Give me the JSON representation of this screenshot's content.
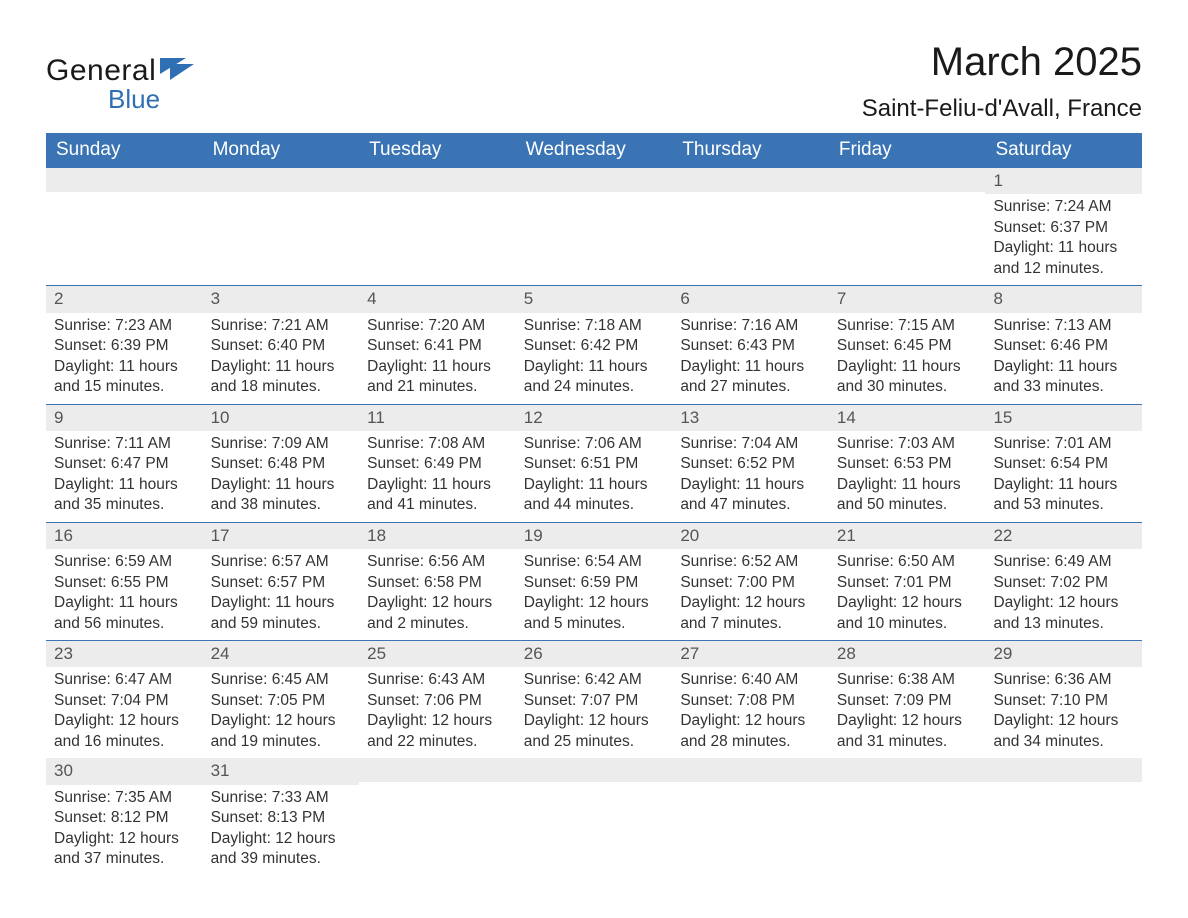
{
  "brand": {
    "part1": "General",
    "part2": "Blue",
    "accent_color": "#2f6fb3"
  },
  "title": "March 2025",
  "location": "Saint-Feliu-d'Avall, France",
  "header_bg": "#3a74b4",
  "header_fg": "#ffffff",
  "daynum_bg": "#ececec",
  "row_border": "#3a74b4",
  "day_headers": [
    "Sunday",
    "Monday",
    "Tuesday",
    "Wednesday",
    "Thursday",
    "Friday",
    "Saturday"
  ],
  "weeks": [
    [
      null,
      null,
      null,
      null,
      null,
      null,
      {
        "n": "1",
        "sr": "7:24 AM",
        "ss": "6:37 PM",
        "dh": "11",
        "dm": "12"
      }
    ],
    [
      {
        "n": "2",
        "sr": "7:23 AM",
        "ss": "6:39 PM",
        "dh": "11",
        "dm": "15"
      },
      {
        "n": "3",
        "sr": "7:21 AM",
        "ss": "6:40 PM",
        "dh": "11",
        "dm": "18"
      },
      {
        "n": "4",
        "sr": "7:20 AM",
        "ss": "6:41 PM",
        "dh": "11",
        "dm": "21"
      },
      {
        "n": "5",
        "sr": "7:18 AM",
        "ss": "6:42 PM",
        "dh": "11",
        "dm": "24"
      },
      {
        "n": "6",
        "sr": "7:16 AM",
        "ss": "6:43 PM",
        "dh": "11",
        "dm": "27"
      },
      {
        "n": "7",
        "sr": "7:15 AM",
        "ss": "6:45 PM",
        "dh": "11",
        "dm": "30"
      },
      {
        "n": "8",
        "sr": "7:13 AM",
        "ss": "6:46 PM",
        "dh": "11",
        "dm": "33"
      }
    ],
    [
      {
        "n": "9",
        "sr": "7:11 AM",
        "ss": "6:47 PM",
        "dh": "11",
        "dm": "35"
      },
      {
        "n": "10",
        "sr": "7:09 AM",
        "ss": "6:48 PM",
        "dh": "11",
        "dm": "38"
      },
      {
        "n": "11",
        "sr": "7:08 AM",
        "ss": "6:49 PM",
        "dh": "11",
        "dm": "41"
      },
      {
        "n": "12",
        "sr": "7:06 AM",
        "ss": "6:51 PM",
        "dh": "11",
        "dm": "44"
      },
      {
        "n": "13",
        "sr": "7:04 AM",
        "ss": "6:52 PM",
        "dh": "11",
        "dm": "47"
      },
      {
        "n": "14",
        "sr": "7:03 AM",
        "ss": "6:53 PM",
        "dh": "11",
        "dm": "50"
      },
      {
        "n": "15",
        "sr": "7:01 AM",
        "ss": "6:54 PM",
        "dh": "11",
        "dm": "53"
      }
    ],
    [
      {
        "n": "16",
        "sr": "6:59 AM",
        "ss": "6:55 PM",
        "dh": "11",
        "dm": "56"
      },
      {
        "n": "17",
        "sr": "6:57 AM",
        "ss": "6:57 PM",
        "dh": "11",
        "dm": "59"
      },
      {
        "n": "18",
        "sr": "6:56 AM",
        "ss": "6:58 PM",
        "dh": "12",
        "dm": "2"
      },
      {
        "n": "19",
        "sr": "6:54 AM",
        "ss": "6:59 PM",
        "dh": "12",
        "dm": "5"
      },
      {
        "n": "20",
        "sr": "6:52 AM",
        "ss": "7:00 PM",
        "dh": "12",
        "dm": "7"
      },
      {
        "n": "21",
        "sr": "6:50 AM",
        "ss": "7:01 PM",
        "dh": "12",
        "dm": "10"
      },
      {
        "n": "22",
        "sr": "6:49 AM",
        "ss": "7:02 PM",
        "dh": "12",
        "dm": "13"
      }
    ],
    [
      {
        "n": "23",
        "sr": "6:47 AM",
        "ss": "7:04 PM",
        "dh": "12",
        "dm": "16"
      },
      {
        "n": "24",
        "sr": "6:45 AM",
        "ss": "7:05 PM",
        "dh": "12",
        "dm": "19"
      },
      {
        "n": "25",
        "sr": "6:43 AM",
        "ss": "7:06 PM",
        "dh": "12",
        "dm": "22"
      },
      {
        "n": "26",
        "sr": "6:42 AM",
        "ss": "7:07 PM",
        "dh": "12",
        "dm": "25"
      },
      {
        "n": "27",
        "sr": "6:40 AM",
        "ss": "7:08 PM",
        "dh": "12",
        "dm": "28"
      },
      {
        "n": "28",
        "sr": "6:38 AM",
        "ss": "7:09 PM",
        "dh": "12",
        "dm": "31"
      },
      {
        "n": "29",
        "sr": "6:36 AM",
        "ss": "7:10 PM",
        "dh": "12",
        "dm": "34"
      }
    ],
    [
      {
        "n": "30",
        "sr": "7:35 AM",
        "ss": "8:12 PM",
        "dh": "12",
        "dm": "37"
      },
      {
        "n": "31",
        "sr": "7:33 AM",
        "ss": "8:13 PM",
        "dh": "12",
        "dm": "39"
      },
      null,
      null,
      null,
      null,
      null
    ]
  ],
  "labels": {
    "sunrise": "Sunrise: ",
    "sunset": "Sunset: ",
    "daylight1a": "Daylight: ",
    "daylight1b": " hours",
    "daylight2a": "and ",
    "daylight2b": " minutes."
  }
}
